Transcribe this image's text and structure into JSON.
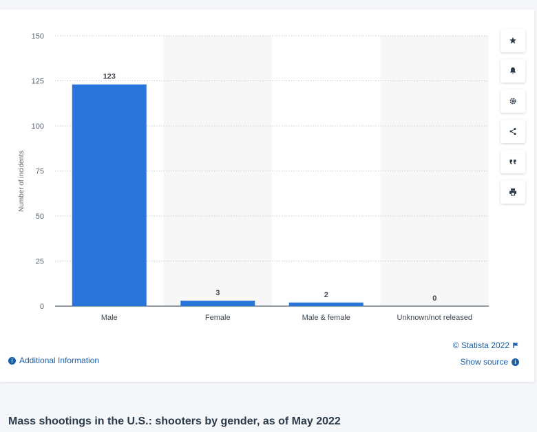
{
  "chart_data": {
    "type": "bar",
    "categories": [
      "Male",
      "Female",
      "Male & female",
      "Unknown/not released"
    ],
    "values": [
      123,
      3,
      2,
      0
    ],
    "data_labels": [
      "123",
      "3",
      "2",
      "0"
    ],
    "ylabel": "Number of incidents",
    "xlabel": "",
    "ylim": [
      0,
      150
    ],
    "yticks": [
      0,
      25,
      50,
      75,
      100,
      125,
      150
    ],
    "grid": true,
    "bar_color": "#2a75d9",
    "band_color": "#f7f7f7"
  },
  "toolbar": {
    "icons": [
      "star-icon",
      "bell-icon",
      "gear-icon",
      "share-icon",
      "quote-icon",
      "print-icon"
    ]
  },
  "footer": {
    "credit": "© Statista 2022",
    "show_source": "Show source",
    "additional_info": "Additional Information"
  },
  "page": {
    "title": "Mass shootings in the U.S.: shooters by gender, as of May 2022"
  },
  "colors": {
    "link": "#1a5fa8",
    "title": "#2b3a4a"
  }
}
